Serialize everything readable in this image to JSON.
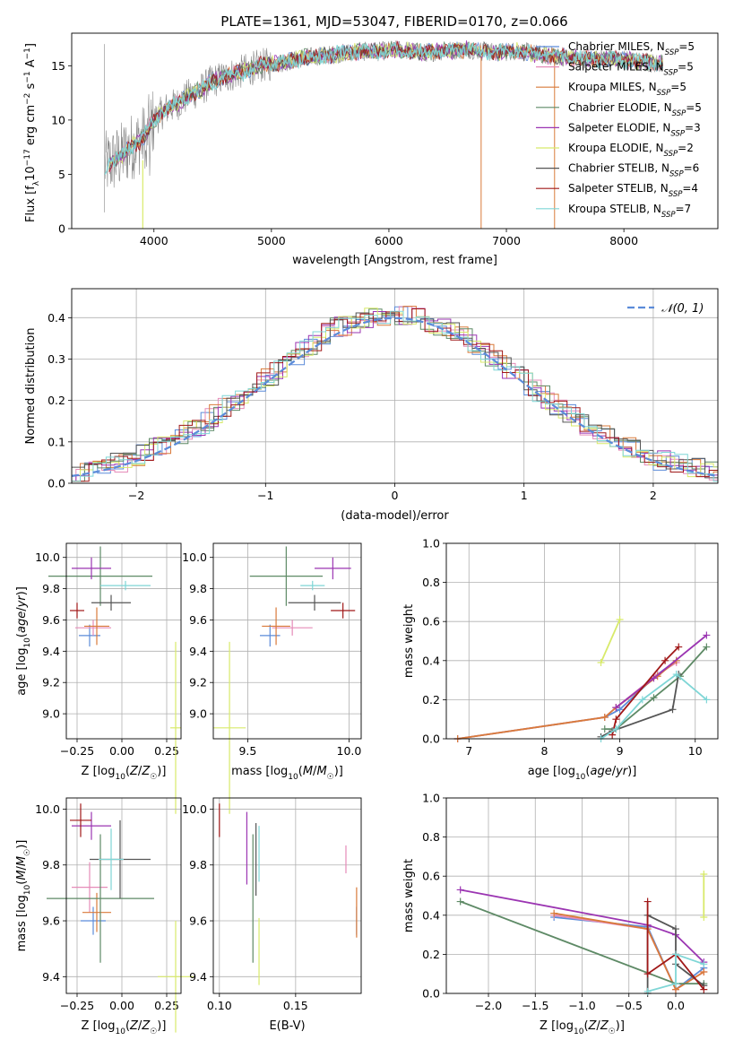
{
  "figure_title": "PLATE=1361, MJD=53047, FIBERID=0170, z=0.066",
  "colors": {
    "chabrier_miles": "#5b8bd9",
    "salpeter_miles": "#e58bb8",
    "kroupa_miles": "#d97a3a",
    "chabrier_elodie": "#5e8a66",
    "salpeter_elodie": "#9b35b2",
    "kroupa_elodie": "#d8ea6a",
    "chabrier_stelib": "#555555",
    "salpeter_stelib": "#a01818",
    "kroupa_stelib": "#7fd6d6",
    "data_spectrum": "#888888",
    "gaussian": "#5b8bd9"
  },
  "chart_data": [
    {
      "id": "spectrum",
      "type": "line",
      "title": "PLATE=1361, MJD=53047, FIBERID=0170, z=0.066",
      "xlabel": "wavelength [Angstrom, rest frame]",
      "ylabel": "Flux [f_λ 10^-17 erg cm^-2 s^-1 A^-1]",
      "xlim": [
        3300,
        8800
      ],
      "ylim": [
        0,
        18
      ],
      "xticks": [
        4000,
        5000,
        6000,
        7000,
        8000
      ],
      "yticks": [
        0,
        5,
        10,
        15
      ],
      "grid": false,
      "legend_position": "top-right",
      "spectrum_outline_x": [
        3580,
        3700,
        3800,
        3900,
        4000,
        4100,
        4200,
        4300,
        4400,
        4500,
        4700,
        4900,
        5100,
        5300,
        5500,
        5700,
        5900,
        6100,
        6300,
        6500,
        6700,
        6900,
        7100,
        7300,
        7500,
        7700,
        7900,
        8100,
        8300
      ],
      "spectrum_outline_y": [
        5.8,
        6.5,
        7.5,
        8.2,
        10.0,
        11.0,
        11.5,
        12.3,
        12.8,
        13.6,
        14.3,
        15.0,
        15.3,
        15.8,
        16.0,
        16.3,
        16.3,
        16.5,
        16.2,
        16.4,
        16.5,
        16.2,
        16.4,
        16.0,
        15.8,
        15.6,
        15.7,
        15.4,
        15.2
      ],
      "series": [
        {
          "name": "Chabrier MILES, N_SSP=5",
          "color_key": "chabrier_miles"
        },
        {
          "name": "Salpeter MILES, N_SSP=5",
          "color_key": "salpeter_miles"
        },
        {
          "name": "Kroupa MILES, N_SSP=5",
          "color_key": "kroupa_miles"
        },
        {
          "name": "Chabrier ELODIE, N_SSP=5",
          "color_key": "chabrier_elodie"
        },
        {
          "name": "Salpeter ELODIE, N_SSP=3",
          "color_key": "salpeter_elodie"
        },
        {
          "name": "Kroupa ELODIE, N_SSP=2",
          "color_key": "kroupa_elodie"
        },
        {
          "name": "Chabrier STELIB, N_SSP=6",
          "color_key": "chabrier_stelib"
        },
        {
          "name": "Salpeter STELIB, N_SSP=4",
          "color_key": "salpeter_stelib"
        },
        {
          "name": "Kroupa STELIB, N_SSP=7",
          "color_key": "kroupa_stelib"
        }
      ]
    },
    {
      "id": "residuals",
      "type": "bar",
      "xlabel": "(data-model)/error",
      "ylabel": "Normed distribution",
      "xlim": [
        -2.5,
        2.5
      ],
      "ylim": [
        0,
        0.47
      ],
      "xticks": [
        -2,
        -1,
        0,
        1,
        2
      ],
      "yticks": [
        0.0,
        0.1,
        0.2,
        0.3,
        0.4
      ],
      "grid": true,
      "legend_position": "top-right",
      "gaussian_label": "𝒩(0, 1)",
      "bin_width": 0.1,
      "histogram_envelope_x": [
        -2.5,
        -2.0,
        -1.5,
        -1.0,
        -0.5,
        -0.2,
        0.0,
        0.2,
        0.5,
        1.0,
        1.5,
        2.0,
        2.5
      ],
      "histogram_envelope_y": [
        0.02,
        0.06,
        0.14,
        0.25,
        0.37,
        0.4,
        0.41,
        0.4,
        0.36,
        0.25,
        0.13,
        0.06,
        0.025
      ]
    },
    {
      "id": "age_vs_Z",
      "type": "scatter",
      "xlabel": "Z [log10(Z/Z☉)]",
      "ylabel": "age  [log10(age/yr)]",
      "xlim": [
        -0.31,
        0.33
      ],
      "ylim": [
        8.84,
        10.09
      ],
      "xticks": [
        -0.25,
        0.0,
        0.25
      ],
      "xticklabels": [
        "−0.25",
        "0.00",
        "0.25"
      ],
      "yticks": [
        9.0,
        9.2,
        9.4,
        9.6,
        9.8,
        10.0
      ],
      "grid": true,
      "points": [
        {
          "key": "chabrier_miles",
          "x": -0.18,
          "xerr": 0.06,
          "y": 9.5,
          "yerr": 0.07
        },
        {
          "key": "salpeter_miles",
          "x": -0.16,
          "xerr": 0.1,
          "y": 9.55,
          "yerr": 0.05
        },
        {
          "key": "kroupa_miles",
          "x": -0.14,
          "xerr": 0.07,
          "y": 9.56,
          "yerr": 0.12
        },
        {
          "key": "chabrier_elodie",
          "x": -0.12,
          "xerr": 0.29,
          "y": 9.88,
          "yerr": 0.19
        },
        {
          "key": "salpeter_elodie",
          "x": -0.17,
          "xerr": 0.11,
          "y": 9.93,
          "yerr": 0.07
        },
        {
          "key": "kroupa_elodie",
          "x": 0.3,
          "xerr": 0.03,
          "y": 8.91,
          "yerr": 0.55
        },
        {
          "key": "chabrier_stelib",
          "x": -0.06,
          "xerr": 0.11,
          "y": 9.71,
          "yerr": 0.05
        },
        {
          "key": "salpeter_stelib",
          "x": -0.25,
          "xerr": 0.04,
          "y": 9.66,
          "yerr": 0.05
        },
        {
          "key": "kroupa_stelib",
          "x": 0.02,
          "xerr": 0.14,
          "y": 9.82,
          "yerr": 0.03
        }
      ]
    },
    {
      "id": "age_vs_mass",
      "type": "scatter",
      "xlabel": "mass [log10(M/M☉)]",
      "xlim": [
        9.33,
        10.06
      ],
      "ylim": [
        8.84,
        10.09
      ],
      "xticks": [
        9.5,
        10.0
      ],
      "xticklabels": [
        "9.5",
        "10.0"
      ],
      "yticks": [
        9.0,
        9.2,
        9.4,
        9.6,
        9.8,
        10.0
      ],
      "grid": true,
      "points": [
        {
          "key": "chabrier_miles",
          "x": 9.61,
          "xerr": 0.05,
          "y": 9.5,
          "yerr": 0.07
        },
        {
          "key": "salpeter_miles",
          "x": 9.72,
          "xerr": 0.1,
          "y": 9.55,
          "yerr": 0.05
        },
        {
          "key": "kroupa_miles",
          "x": 9.64,
          "xerr": 0.07,
          "y": 9.56,
          "yerr": 0.12
        },
        {
          "key": "chabrier_elodie",
          "x": 9.69,
          "xerr": 0.18,
          "y": 9.88,
          "yerr": 0.19
        },
        {
          "key": "salpeter_elodie",
          "x": 9.92,
          "xerr": 0.09,
          "y": 9.93,
          "yerr": 0.07
        },
        {
          "key": "kroupa_elodie",
          "x": 9.41,
          "xerr": 0.08,
          "y": 8.91,
          "yerr": 0.55
        },
        {
          "key": "chabrier_stelib",
          "x": 9.83,
          "xerr": 0.13,
          "y": 9.71,
          "yerr": 0.05
        },
        {
          "key": "salpeter_stelib",
          "x": 9.97,
          "xerr": 0.06,
          "y": 9.66,
          "yerr": 0.05
        },
        {
          "key": "kroupa_stelib",
          "x": 9.82,
          "xerr": 0.06,
          "y": 9.82,
          "yerr": 0.03
        }
      ]
    },
    {
      "id": "weight_vs_age",
      "type": "line",
      "xlabel": "age  [log10(age/yr)]",
      "ylabel": "mass weight",
      "xlim": [
        6.7,
        10.3
      ],
      "ylim": [
        0,
        1.0
      ],
      "xticks": [
        7,
        8,
        9,
        10
      ],
      "yticks": [
        0.0,
        0.2,
        0.4,
        0.6,
        0.8,
        1.0
      ],
      "grid": true,
      "series": [
        {
          "key": "chabrier_miles",
          "x": [
            6.85,
            8.8,
            9.0,
            9.5,
            9.75
          ],
          "y": [
            0.0,
            0.11,
            0.15,
            0.33,
            0.4
          ]
        },
        {
          "key": "salpeter_miles",
          "x": [
            6.85,
            8.8,
            8.95,
            9.5,
            9.75
          ],
          "y": [
            0.0,
            0.11,
            0.16,
            0.33,
            0.39
          ]
        },
        {
          "key": "kroupa_miles",
          "x": [
            6.85,
            8.8,
            8.95,
            9.5,
            9.75
          ],
          "y": [
            0.0,
            0.11,
            0.16,
            0.32,
            0.4
          ]
        },
        {
          "key": "chabrier_elodie",
          "x": [
            8.8,
            8.95,
            9.45,
            9.8,
            10.15
          ],
          "y": [
            0.05,
            0.05,
            0.21,
            0.32,
            0.47
          ]
        },
        {
          "key": "salpeter_elodie",
          "x": [
            8.95,
            9.45,
            10.15
          ],
          "y": [
            0.16,
            0.31,
            0.53
          ]
        },
        {
          "key": "kroupa_elodie",
          "x": [
            8.75,
            9.0
          ],
          "y": [
            0.39,
            0.61
          ]
        },
        {
          "key": "chabrier_stelib",
          "x": [
            8.75,
            8.9,
            9.7,
            9.78
          ],
          "y": [
            0.01,
            0.04,
            0.15,
            0.33
          ]
        },
        {
          "key": "salpeter_stelib",
          "x": [
            8.9,
            8.95,
            9.6,
            9.78
          ],
          "y": [
            0.02,
            0.1,
            0.4,
            0.47
          ]
        },
        {
          "key": "kroupa_stelib",
          "x": [
            8.75,
            8.95,
            9.3,
            9.75,
            10.15
          ],
          "y": [
            0.0,
            0.05,
            0.2,
            0.33,
            0.2
          ]
        }
      ]
    },
    {
      "id": "mass_vs_Z",
      "type": "scatter",
      "xlabel": "Z [log10(Z/Z☉)]",
      "ylabel": "mass [log10(M/M☉)]",
      "xlim": [
        -0.31,
        0.33
      ],
      "ylim": [
        9.34,
        10.04
      ],
      "xticks": [
        -0.25,
        0.0,
        0.25
      ],
      "xticklabels": [
        "−0.25",
        "0.00",
        "0.25"
      ],
      "yticks": [
        9.4,
        9.6,
        9.8,
        10.0
      ],
      "grid": true,
      "points": [
        {
          "key": "chabrier_miles",
          "x": -0.16,
          "xerr": 0.07,
          "y": 9.6,
          "yerr": 0.05
        },
        {
          "key": "salpeter_miles",
          "x": -0.18,
          "xerr": 0.1,
          "y": 9.72,
          "yerr": 0.09
        },
        {
          "key": "kroupa_miles",
          "x": -0.14,
          "xerr": 0.08,
          "y": 9.63,
          "yerr": 0.07
        },
        {
          "key": "chabrier_elodie",
          "x": -0.12,
          "xerr": 0.3,
          "y": 9.68,
          "yerr": 0.23
        },
        {
          "key": "salpeter_elodie",
          "x": -0.17,
          "xerr": 0.11,
          "y": 9.94,
          "yerr": 0.05
        },
        {
          "key": "kroupa_elodie",
          "x": 0.3,
          "xerr": 0.1,
          "y": 9.4,
          "yerr": 0.2
        },
        {
          "key": "chabrier_stelib",
          "x": -0.01,
          "xerr": 0.17,
          "y": 9.82,
          "yerr": 0.14
        },
        {
          "key": "salpeter_stelib",
          "x": -0.23,
          "xerr": 0.06,
          "y": 9.96,
          "yerr": 0.06
        },
        {
          "key": "kroupa_stelib",
          "x": -0.06,
          "xerr": 0.07,
          "y": 9.82,
          "yerr": 0.11
        }
      ]
    },
    {
      "id": "mass_vs_EBV",
      "type": "scatter",
      "xlabel": "E(B-V)",
      "xlim": [
        0.096,
        0.193
      ],
      "ylim": [
        9.34,
        10.04
      ],
      "xticks": [
        0.1,
        0.15
      ],
      "xticklabels": [
        "0.10",
        "0.15"
      ],
      "yticks": [
        9.4,
        9.6,
        9.8,
        10.0
      ],
      "grid": true,
      "points": [
        {
          "key": "chabrier_miles",
          "x": 0.19,
          "y": 9.6,
          "yerr": 0.05
        },
        {
          "key": "salpeter_miles",
          "x": 0.183,
          "y": 9.82,
          "yerr": 0.05
        },
        {
          "key": "kroupa_miles",
          "x": 0.19,
          "y": 9.63,
          "yerr": 0.09
        },
        {
          "key": "chabrier_elodie",
          "x": 0.122,
          "y": 9.68,
          "yerr": 0.23
        },
        {
          "key": "salpeter_elodie",
          "x": 0.118,
          "y": 9.86,
          "yerr": 0.13
        },
        {
          "key": "kroupa_elodie",
          "x": 0.126,
          "y": 9.49,
          "yerr": 0.12
        },
        {
          "key": "chabrier_stelib",
          "x": 0.124,
          "y": 9.82,
          "yerr": 0.13
        },
        {
          "key": "salpeter_stelib",
          "x": 0.1,
          "y": 9.96,
          "yerr": 0.06
        },
        {
          "key": "kroupa_stelib",
          "x": 0.126,
          "y": 9.84,
          "yerr": 0.1
        }
      ]
    },
    {
      "id": "weight_vs_Z",
      "type": "line",
      "xlabel": "Z [log10(Z/Z☉)]",
      "ylabel": "mass weight",
      "xlim": [
        -2.45,
        0.45
      ],
      "ylim": [
        0,
        1.0
      ],
      "xticks": [
        -2.0,
        -1.5,
        -1.0,
        -0.5,
        0.0
      ],
      "xticklabels": [
        "−2.0",
        "−1.5",
        "−1.0",
        "−0.5",
        "0.0"
      ],
      "yticks": [
        0.0,
        0.2,
        0.4,
        0.6,
        0.8,
        1.0
      ],
      "grid": true,
      "series": [
        {
          "key": "chabrier_miles",
          "x": [
            -1.3,
            -0.3,
            0.0,
            0.3
          ],
          "y": [
            0.39,
            0.34,
            0.02,
            0.13
          ]
        },
        {
          "key": "salpeter_miles",
          "x": [
            -1.3,
            -0.3,
            0.0,
            0.3
          ],
          "y": [
            0.4,
            0.33,
            0.02,
            0.11
          ]
        },
        {
          "key": "kroupa_miles",
          "x": [
            -1.3,
            -0.3,
            0.0,
            0.3
          ],
          "y": [
            0.41,
            0.33,
            0.02,
            0.11
          ]
        },
        {
          "key": "chabrier_elodie",
          "x": [
            -2.3,
            0.0,
            0.3
          ],
          "y": [
            0.47,
            0.05,
            0.05
          ]
        },
        {
          "key": "salpeter_elodie",
          "x": [
            -2.3,
            -0.3,
            0.0,
            0.3
          ],
          "y": [
            0.53,
            0.35,
            0.3,
            0.16
          ]
        },
        {
          "key": "kroupa_elodie",
          "x": [
            0.3,
            0.3
          ],
          "y": [
            0.39,
            0.61
          ]
        },
        {
          "key": "chabrier_stelib",
          "x": [
            -0.3,
            -0.3,
            0.0,
            0.0,
            0.3
          ],
          "y": [
            0.0,
            0.4,
            0.33,
            0.15,
            0.04
          ]
        },
        {
          "key": "salpeter_stelib",
          "x": [
            -0.3,
            -0.3,
            0.0,
            0.3
          ],
          "y": [
            0.47,
            0.1,
            0.2,
            0.02
          ]
        },
        {
          "key": "kroupa_stelib",
          "x": [
            -0.3,
            0.0,
            0.0,
            0.3
          ],
          "y": [
            0.01,
            0.05,
            0.2,
            0.15
          ]
        }
      ]
    }
  ],
  "legend_labels": [
    {
      "pre": "Chabrier MILES, N",
      "sub": "SSP",
      "post": "=5"
    },
    {
      "pre": "Salpeter MILES, N",
      "sub": "SSP",
      "post": "=5"
    },
    {
      "pre": "Kroupa MILES, N",
      "sub": "SSP",
      "post": "=5"
    },
    {
      "pre": "Chabrier ELODIE, N",
      "sub": "SSP",
      "post": "=5"
    },
    {
      "pre": "Salpeter ELODIE, N",
      "sub": "SSP",
      "post": "=3"
    },
    {
      "pre": "Kroupa ELODIE, N",
      "sub": "SSP",
      "post": "=2"
    },
    {
      "pre": "Chabrier STELIB, N",
      "sub": "SSP",
      "post": "=6"
    },
    {
      "pre": "Salpeter STELIB, N",
      "sub": "SSP",
      "post": "=4"
    },
    {
      "pre": "Kroupa STELIB, N",
      "sub": "SSP",
      "post": "=7"
    }
  ]
}
